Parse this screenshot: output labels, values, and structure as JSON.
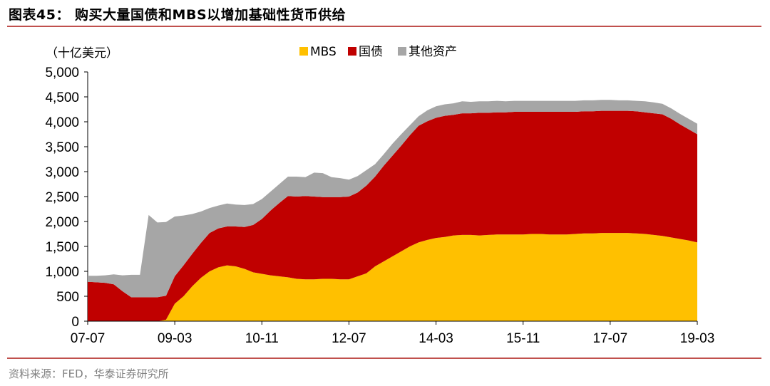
{
  "header": {
    "title": "图表45： 购买大量国债和MBS以增加基础性货币供给"
  },
  "footer": {
    "source": "资料来源：FED，华泰证券研究所"
  },
  "colors": {
    "mbs": "#ffc000",
    "treasury": "#c00000",
    "other": "#a6a6a6",
    "rule": "#c0504d"
  },
  "chart_data": {
    "type": "area",
    "stacked": true,
    "unit_label": "（十亿美元）",
    "ylim": [
      0,
      5000
    ],
    "yticks": [
      "0",
      "500",
      "1,000",
      "1,500",
      "2,000",
      "2,500",
      "3,000",
      "3,500",
      "4,000",
      "4,500",
      "5,000"
    ],
    "xticks": [
      "07-07",
      "09-03",
      "10-11",
      "12-07",
      "14-03",
      "15-11",
      "17-07",
      "19-03"
    ],
    "legend_position": "top",
    "x": [
      "07-07",
      "07-09",
      "07-11",
      "08-01",
      "08-03",
      "08-05",
      "08-07",
      "08-09",
      "08-11",
      "09-01",
      "09-03",
      "09-05",
      "09-07",
      "09-09",
      "09-11",
      "10-01",
      "10-03",
      "10-05",
      "10-07",
      "10-09",
      "10-11",
      "11-01",
      "11-03",
      "11-05",
      "11-07",
      "11-09",
      "11-11",
      "12-01",
      "12-03",
      "12-05",
      "12-07",
      "12-09",
      "12-11",
      "13-01",
      "13-03",
      "13-05",
      "13-07",
      "13-09",
      "13-11",
      "14-01",
      "14-03",
      "14-05",
      "14-07",
      "14-09",
      "14-11",
      "15-01",
      "15-03",
      "15-05",
      "15-07",
      "15-09",
      "15-11",
      "16-01",
      "16-03",
      "16-05",
      "16-07",
      "16-09",
      "16-11",
      "17-01",
      "17-03",
      "17-05",
      "17-07",
      "17-09",
      "17-11",
      "18-01",
      "18-03",
      "18-05",
      "18-07",
      "18-09",
      "18-11",
      "19-01",
      "19-03"
    ],
    "series": [
      {
        "name": "MBS",
        "values": [
          0,
          0,
          0,
          0,
          0,
          0,
          0,
          0,
          0,
          30,
          350,
          500,
          700,
          870,
          1000,
          1080,
          1120,
          1100,
          1050,
          980,
          950,
          920,
          900,
          880,
          850,
          840,
          840,
          850,
          850,
          840,
          840,
          900,
          960,
          1100,
          1200,
          1300,
          1400,
          1500,
          1580,
          1630,
          1670,
          1690,
          1720,
          1730,
          1730,
          1720,
          1730,
          1740,
          1740,
          1740,
          1740,
          1750,
          1750,
          1740,
          1740,
          1740,
          1750,
          1760,
          1760,
          1770,
          1770,
          1770,
          1770,
          1760,
          1750,
          1730,
          1710,
          1680,
          1650,
          1620,
          1580
        ]
      },
      {
        "name": "国债",
        "values": [
          790,
          780,
          770,
          740,
          600,
          480,
          480,
          480,
          480,
          480,
          550,
          620,
          650,
          700,
          770,
          780,
          780,
          800,
          840,
          950,
          1100,
          1300,
          1470,
          1630,
          1650,
          1670,
          1660,
          1640,
          1640,
          1650,
          1660,
          1680,
          1760,
          1800,
          1920,
          2020,
          2120,
          2230,
          2340,
          2380,
          2410,
          2430,
          2420,
          2440,
          2440,
          2460,
          2450,
          2450,
          2450,
          2460,
          2460,
          2450,
          2450,
          2460,
          2460,
          2460,
          2450,
          2450,
          2450,
          2450,
          2450,
          2450,
          2450,
          2450,
          2440,
          2440,
          2440,
          2380,
          2300,
          2230,
          2170
        ]
      },
      {
        "name": "其他资产",
        "values": [
          120,
          130,
          150,
          200,
          320,
          450,
          450,
          1650,
          1500,
          1480,
          1200,
          1000,
          800,
          630,
          500,
          460,
          460,
          440,
          440,
          420,
          400,
          380,
          380,
          390,
          400,
          380,
          480,
          480,
          400,
          380,
          340,
          330,
          310,
          250,
          230,
          240,
          230,
          200,
          190,
          220,
          230,
          230,
          230,
          240,
          230,
          230,
          230,
          230,
          220,
          220,
          220,
          220,
          220,
          220,
          220,
          220,
          220,
          220,
          220,
          220,
          220,
          210,
          210,
          210,
          220,
          220,
          210,
          210,
          210,
          210,
          210
        ]
      }
    ]
  }
}
